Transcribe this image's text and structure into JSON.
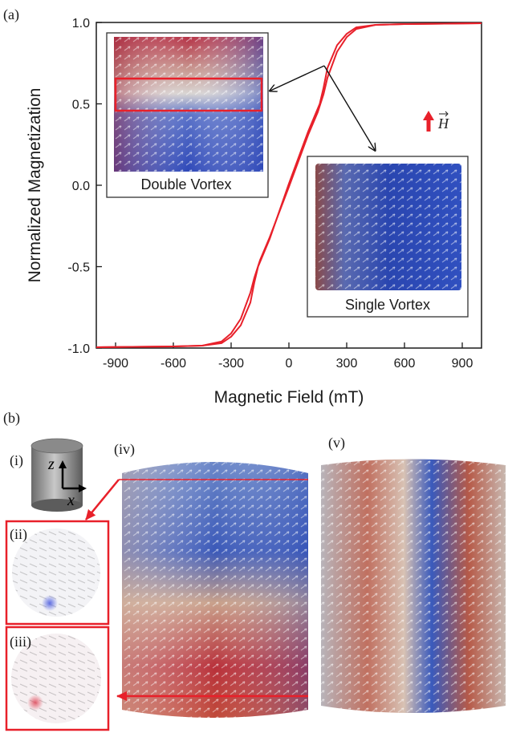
{
  "chart_data": {
    "type": "line",
    "panel_label": "(a)",
    "xlabel": "Magnetic Field (mT)",
    "ylabel": "Normalized Magnetization",
    "xlim": [
      -1000,
      1000
    ],
    "ylim": [
      -1.0,
      1.0
    ],
    "xticks": [
      -900,
      -600,
      -300,
      0,
      300,
      600,
      900
    ],
    "yticks": [
      -1.0,
      -0.5,
      0.0,
      0.5,
      1.0
    ],
    "ytick_labels": [
      "-1.0",
      "-0.5",
      "0.0",
      "0.5",
      "1.0"
    ],
    "color": "#e8202a",
    "series": [
      {
        "x": [
          -1000,
          -600,
          -450,
          -350,
          -300,
          -250,
          -200,
          -180,
          -150,
          -100,
          0,
          100,
          150,
          180,
          200,
          250,
          300,
          350,
          450,
          600,
          1000
        ],
        "y": [
          -0.995,
          -0.99,
          -0.985,
          -0.96,
          -0.91,
          -0.82,
          -0.66,
          -0.57,
          -0.46,
          -0.32,
          -0.01,
          0.31,
          0.45,
          0.56,
          0.66,
          0.82,
          0.91,
          0.96,
          0.985,
          0.99,
          0.995
        ]
      },
      {
        "x": [
          -1000,
          -600,
          -450,
          -350,
          -300,
          -250,
          -200,
          -180,
          -160,
          -100,
          0,
          100,
          160,
          180,
          200,
          250,
          300,
          350,
          450,
          600,
          1000
        ],
        "y": [
          -0.995,
          -0.99,
          -0.985,
          -0.97,
          -0.93,
          -0.86,
          -0.72,
          -0.6,
          -0.5,
          -0.33,
          0.01,
          0.33,
          0.5,
          0.6,
          0.72,
          0.86,
          0.93,
          0.97,
          0.985,
          0.99,
          0.995
        ]
      }
    ],
    "inset_labels": [
      "Double Vortex",
      "Single Vortex"
    ],
    "field_symbol": "H"
  },
  "panel_b": {
    "label": "(b)",
    "sub_labels": [
      "(i)",
      "(ii)",
      "(iii)",
      "(iv)",
      "(v)"
    ],
    "axis_z": "z",
    "axis_x": "x"
  },
  "colors": {
    "curve": "#e8202a",
    "blue": "#3b56c8",
    "red": "#b8202a",
    "highlight": "#e8202a"
  }
}
